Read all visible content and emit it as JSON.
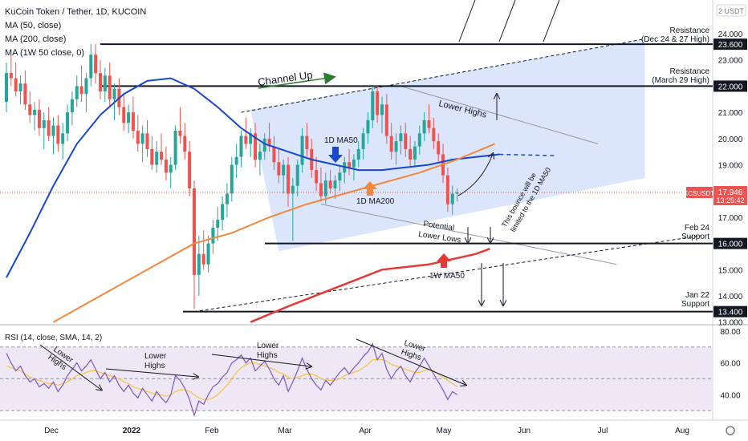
{
  "header": {
    "symbol_title": "KuCoin Token / Tether, 1D, KUCOIN",
    "indicator_lines": [
      "MA (50, close)",
      "MA (200, close)",
      "MA (1W 50 close, 0)"
    ]
  },
  "colors": {
    "candle_up": "#26a69a",
    "candle_down": "#ef5350",
    "ma50": "#1848cc",
    "ma200": "#f0883e",
    "ma1w50": "#e53935",
    "channel_fill": "#cfdcfb",
    "rsi_line": "#7e57c2",
    "rsi_ma": "#f5c542",
    "rsi_band": "#ede7f6",
    "price_tag": "#ef5350",
    "level_tag": "#131722"
  },
  "chart_data": {
    "type": "candlestick",
    "symbol": "KCSUSDT",
    "timeframe": "1D",
    "exchange": "KUCOIN",
    "x_tick_labels": [
      "Dec",
      "2022",
      "Feb",
      "Mar",
      "Apr",
      "May",
      "Jun",
      "Jul",
      "Aug"
    ],
    "price_axis_labels": [
      "24.000",
      "23.000",
      "21.000",
      "20.000",
      "19.000",
      "17.000",
      "15.000",
      "14.000",
      "13.000"
    ],
    "ylim": [
      12.9,
      25.0
    ],
    "current_price": "17.946",
    "countdown": "13:25:42",
    "price_tag_symbol": "KCSUSDT",
    "top_axis_tag": "2 USDT",
    "levels": [
      {
        "price": 23.6,
        "tag": "23.600",
        "label_lines": [
          "Resistance",
          "(Dec 24 & 27 High)"
        ]
      },
      {
        "price": 22.0,
        "tag": "22.000",
        "label_lines": [
          "Resistance",
          "(March 29 High)"
        ]
      },
      {
        "price": 16.0,
        "tag": "16.000",
        "label_lines": [
          "Feb 24",
          "Support"
        ]
      },
      {
        "price": 13.4,
        "tag": "13.400",
        "label_lines": [
          "Jan 22",
          "Support"
        ]
      }
    ],
    "annotations": {
      "channel_up": "Channel Up",
      "lower_highs": "Lower Highs",
      "ma50_1d": "1D MA50",
      "ma200_1d": "1D MA200",
      "potential_lower_lows": [
        "Potential",
        "Lower Lows"
      ],
      "bounce_note": [
        "This bounce will be",
        "limited to the 1D MA50"
      ],
      "ma50_1w": "1W MA50"
    },
    "candles": [
      [
        21.4,
        22.9,
        21.0,
        22.5
      ],
      [
        22.5,
        23.2,
        22.0,
        22.3
      ],
      [
        22.3,
        22.9,
        21.6,
        21.8
      ],
      [
        21.8,
        22.4,
        21.3,
        22.1
      ],
      [
        22.1,
        22.6,
        21.1,
        21.3
      ],
      [
        21.3,
        21.8,
        20.6,
        20.9
      ],
      [
        20.9,
        21.4,
        20.3,
        21.1
      ],
      [
        21.1,
        21.5,
        20.1,
        20.4
      ],
      [
        20.4,
        21.0,
        19.6,
        20.7
      ],
      [
        20.7,
        21.2,
        19.9,
        20.1
      ],
      [
        20.1,
        20.8,
        19.4,
        20.5
      ],
      [
        20.5,
        20.9,
        19.5,
        19.8
      ],
      [
        19.8,
        20.6,
        19.2,
        20.2
      ],
      [
        20.2,
        21.3,
        19.9,
        21.0
      ],
      [
        21.0,
        21.8,
        20.5,
        21.5
      ],
      [
        21.5,
        22.4,
        21.2,
        22.0
      ],
      [
        22.0,
        22.8,
        21.4,
        21.7
      ],
      [
        21.7,
        22.5,
        21.0,
        22.3
      ],
      [
        22.3,
        23.6,
        22.0,
        23.2
      ],
      [
        23.2,
        23.6,
        22.1,
        22.5
      ],
      [
        22.5,
        23.0,
        21.5,
        21.8
      ],
      [
        21.8,
        22.7,
        21.4,
        22.4
      ],
      [
        22.4,
        22.9,
        21.2,
        21.5
      ],
      [
        21.5,
        22.1,
        20.7,
        21.9
      ],
      [
        21.9,
        22.3,
        20.9,
        21.2
      ],
      [
        21.2,
        21.7,
        20.3,
        20.6
      ],
      [
        20.6,
        21.3,
        20.2,
        21.0
      ],
      [
        21.0,
        21.6,
        20.0,
        20.3
      ],
      [
        20.3,
        20.9,
        19.5,
        19.8
      ],
      [
        19.8,
        20.5,
        19.1,
        20.2
      ],
      [
        20.2,
        20.7,
        19.3,
        19.6
      ],
      [
        19.6,
        20.1,
        18.8,
        19.0
      ],
      [
        19.0,
        19.9,
        18.7,
        19.5
      ],
      [
        19.5,
        20.2,
        19.0,
        19.2
      ],
      [
        19.2,
        19.7,
        18.4,
        18.7
      ],
      [
        18.7,
        19.3,
        18.1,
        19.0
      ],
      [
        19.0,
        20.5,
        18.8,
        20.3
      ],
      [
        20.3,
        21.2,
        19.8,
        20.1
      ],
      [
        20.1,
        20.6,
        19.2,
        19.5
      ],
      [
        19.5,
        19.9,
        17.8,
        18.1
      ],
      [
        18.1,
        18.4,
        13.5,
        14.8
      ],
      [
        14.8,
        16.3,
        14.0,
        15.6
      ],
      [
        15.6,
        16.5,
        15.0,
        15.2
      ],
      [
        15.2,
        16.3,
        14.9,
        16.0
      ],
      [
        16.0,
        16.9,
        15.6,
        16.6
      ],
      [
        16.6,
        17.4,
        16.1,
        16.9
      ],
      [
        16.9,
        17.8,
        16.5,
        17.5
      ],
      [
        17.5,
        18.3,
        17.0,
        17.9
      ],
      [
        17.9,
        19.3,
        17.6,
        19.0
      ],
      [
        19.0,
        19.8,
        18.5,
        19.3
      ],
      [
        19.3,
        20.3,
        18.9,
        20.1
      ],
      [
        20.1,
        20.8,
        19.6,
        19.8
      ],
      [
        19.8,
        20.4,
        19.3,
        20.2
      ],
      [
        20.2,
        20.6,
        18.9,
        19.2
      ],
      [
        19.2,
        19.8,
        18.6,
        19.5
      ],
      [
        19.5,
        20.2,
        19.2,
        20.0
      ],
      [
        20.0,
        20.6,
        19.5,
        19.7
      ],
      [
        19.7,
        20.1,
        18.8,
        19.1
      ],
      [
        19.1,
        19.6,
        18.3,
        18.6
      ],
      [
        18.6,
        19.2,
        17.9,
        19.0
      ],
      [
        19.0,
        19.3,
        17.4,
        17.9
      ],
      [
        17.9,
        18.5,
        16.1,
        18.2
      ],
      [
        18.2,
        19.2,
        17.8,
        19.0
      ],
      [
        19.0,
        20.4,
        18.7,
        20.1
      ],
      [
        20.1,
        20.6,
        19.3,
        19.6
      ],
      [
        19.6,
        20.0,
        18.5,
        18.8
      ],
      [
        18.8,
        19.3,
        18.0,
        18.3
      ],
      [
        18.3,
        18.9,
        17.6,
        17.8
      ],
      [
        17.8,
        18.7,
        17.5,
        18.4
      ],
      [
        18.4,
        18.8,
        17.9,
        18.1
      ],
      [
        18.1,
        18.6,
        17.7,
        18.4
      ],
      [
        18.4,
        19.0,
        18.0,
        18.7
      ],
      [
        18.7,
        19.3,
        18.3,
        19.1
      ],
      [
        19.1,
        19.6,
        18.6,
        18.9
      ],
      [
        18.9,
        19.4,
        18.4,
        19.2
      ],
      [
        19.2,
        19.9,
        18.9,
        19.6
      ],
      [
        19.6,
        20.4,
        19.2,
        20.2
      ],
      [
        20.2,
        21.0,
        19.8,
        20.7
      ],
      [
        20.7,
        22.0,
        20.4,
        21.8
      ],
      [
        21.8,
        22.0,
        20.6,
        20.9
      ],
      [
        20.9,
        21.6,
        20.2,
        21.3
      ],
      [
        21.3,
        21.7,
        19.8,
        20.1
      ],
      [
        20.1,
        20.6,
        19.2,
        19.5
      ],
      [
        19.5,
        20.2,
        19.0,
        19.9
      ],
      [
        19.9,
        20.5,
        19.4,
        20.2
      ],
      [
        20.2,
        20.6,
        19.3,
        19.6
      ],
      [
        19.6,
        20.1,
        18.9,
        19.2
      ],
      [
        19.2,
        19.9,
        18.9,
        19.7
      ],
      [
        19.7,
        20.5,
        19.4,
        20.2
      ],
      [
        20.2,
        21.0,
        19.9,
        20.7
      ],
      [
        20.7,
        21.3,
        20.2,
        20.4
      ],
      [
        20.4,
        20.8,
        19.6,
        19.9
      ],
      [
        19.9,
        20.2,
        19.1,
        19.4
      ],
      [
        19.4,
        19.8,
        18.3,
        18.6
      ],
      [
        18.6,
        18.9,
        17.2,
        17.5
      ],
      [
        17.5,
        18.2,
        17.1,
        17.9
      ],
      [
        17.9,
        18.1,
        17.6,
        17.95
      ]
    ],
    "ma50_1d": [
      [
        0,
        14.7
      ],
      [
        5,
        16.4
      ],
      [
        10,
        18.2
      ],
      [
        15,
        19.8
      ],
      [
        20,
        20.9
      ],
      [
        25,
        21.7
      ],
      [
        30,
        22.2
      ],
      [
        35,
        22.3
      ],
      [
        40,
        21.9
      ],
      [
        45,
        21.2
      ],
      [
        50,
        20.4
      ],
      [
        55,
        19.8
      ],
      [
        60,
        19.5
      ],
      [
        65,
        19.2
      ],
      [
        70,
        19.0
      ],
      [
        75,
        18.8
      ],
      [
        80,
        18.8
      ],
      [
        85,
        18.9
      ],
      [
        90,
        19.0
      ],
      [
        95,
        19.2
      ],
      [
        100,
        19.3
      ],
      [
        105,
        19.4
      ]
    ],
    "ma50_1d_projection": [
      [
        105,
        19.4
      ],
      [
        117,
        19.35
      ]
    ],
    "ma200_1d": [
      [
        10,
        13.0
      ],
      [
        20,
        14.0
      ],
      [
        30,
        15.0
      ],
      [
        40,
        16.0
      ],
      [
        48,
        16.4
      ],
      [
        56,
        17.0
      ],
      [
        64,
        17.5
      ],
      [
        72,
        17.9
      ],
      [
        80,
        18.3
      ],
      [
        88,
        18.7
      ],
      [
        96,
        19.2
      ],
      [
        104,
        19.8
      ]
    ],
    "ma50_1w": [
      [
        52,
        13.0
      ],
      [
        60,
        13.6
      ],
      [
        70,
        14.3
      ],
      [
        80,
        15.0
      ],
      [
        90,
        15.2
      ],
      [
        100,
        15.6
      ],
      [
        103,
        15.8
      ]
    ],
    "channel": {
      "upper": [
        [
          50,
          21.0
        ],
        [
          136,
          23.8
        ]
      ],
      "lower": [
        [
          68,
          15.6
        ],
        [
          150,
          18.2
        ]
      ],
      "fill": [
        [
          52,
          21.1
        ],
        [
          136,
          23.8
        ],
        [
          136,
          18.5
        ],
        [
          58,
          15.7
        ]
      ]
    },
    "trendlines": [
      {
        "name": "lower-highs",
        "points": [
          [
            84,
            22.0
          ],
          [
            126,
            19.8
          ]
        ],
        "style": "solid-gray"
      },
      {
        "name": "lower-lows",
        "points": [
          [
            67,
            17.5
          ],
          [
            130,
            15.2
          ]
        ],
        "style": "solid-gray"
      },
      {
        "name": "support-rising",
        "points": [
          [
            40,
            13.4
          ],
          [
            148,
            16.3
          ]
        ],
        "style": "dashed"
      }
    ],
    "rsi": {
      "label": "RSI (14, close, SMA, 14, 2)",
      "ylim": [
        24,
        84
      ],
      "axis_labels": [
        "80.00",
        "60.00",
        "40.00"
      ],
      "band": [
        30,
        70
      ],
      "values": [
        66,
        60,
        55,
        58,
        52,
        48,
        50,
        45,
        47,
        44,
        48,
        42,
        46,
        52,
        56,
        60,
        55,
        58,
        62,
        56,
        50,
        54,
        48,
        52,
        46,
        42,
        46,
        41,
        38,
        44,
        40,
        36,
        42,
        38,
        35,
        40,
        52,
        49,
        44,
        37,
        27,
        36,
        34,
        40,
        45,
        47,
        51,
        54,
        60,
        62,
        65,
        60,
        63,
        55,
        58,
        61,
        56,
        50,
        46,
        52,
        42,
        48,
        55,
        63,
        56,
        50,
        46,
        43,
        49,
        46,
        50,
        54,
        57,
        53,
        57,
        60,
        64,
        67,
        72,
        62,
        66,
        56,
        50,
        55,
        58,
        52,
        48,
        54,
        58,
        63,
        58,
        53,
        48,
        43,
        37,
        42,
        40
      ],
      "ma": [
        58,
        57,
        56,
        55,
        53,
        51,
        50,
        49,
        48,
        47,
        47,
        46,
        47,
        48,
        50,
        52,
        53,
        54,
        55,
        55,
        54,
        53,
        52,
        51,
        50,
        48,
        47,
        45,
        44,
        43,
        42,
        41,
        40,
        40,
        39,
        40,
        42,
        43,
        43,
        42,
        40,
        38,
        37,
        37,
        38,
        40,
        43,
        46,
        50,
        54,
        57,
        59,
        60,
        60,
        59,
        58,
        57,
        56,
        54,
        53,
        51,
        50,
        51,
        52,
        53,
        53,
        52,
        50,
        49,
        49,
        49,
        50,
        52,
        53,
        54,
        55,
        57,
        59,
        62,
        62,
        62,
        61,
        59,
        58,
        57,
        56,
        55,
        54,
        54,
        55,
        56,
        55,
        53,
        51,
        49,
        47,
        45
      ],
      "annotations": [
        {
          "text": [
            "Lower",
            "Highs"
          ]
        },
        {
          "text": [
            "Lower",
            "Highs"
          ]
        },
        {
          "text": [
            "Lower",
            "Highs"
          ]
        },
        {
          "text": [
            "Lower",
            "Highs"
          ]
        }
      ]
    }
  }
}
